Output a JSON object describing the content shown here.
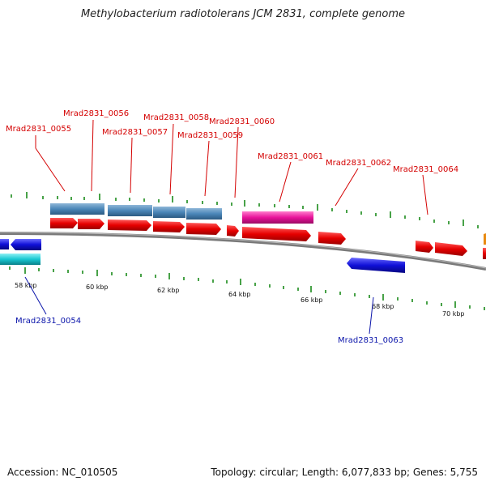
{
  "title": "Methylobacterium radiotolerans JCM 2831, complete genome",
  "footer": {
    "accession": "Accession: NC_010505",
    "summary": "Topology: circular; Length: 6,077,833 bp; Genes: 5,755"
  },
  "scale": [
    "58 kbp",
    "60 kbp",
    "62 kbp",
    "64 kbp",
    "66 kbp",
    "68 kbp",
    "70 kbp"
  ],
  "gene_labels_top": [
    "Mrad2831_0055",
    "Mrad2831_0056",
    "Mrad2831_0057",
    "Mrad2831_0058",
    "Mrad2831_0059",
    "Mrad2831_0060",
    "Mrad2831_0061",
    "Mrad2831_0062",
    "Mrad2831_0064"
  ],
  "gene_labels_bottom": [
    "Mrad2831_0054",
    "Mrad2831_0063"
  ],
  "colors": {
    "backbone": "#7a7a7a",
    "cds": "#e60000",
    "gene_steelblue": "#4a86b8",
    "gene_magenta": "#e8139a",
    "gene_blue": "#1010d8",
    "gene_cyan": "#18c8d2",
    "gene_orange": "#e88a10",
    "tick": "#1a8a1a",
    "label_top": "#d40000",
    "label_bottom": "#0a14aa"
  }
}
